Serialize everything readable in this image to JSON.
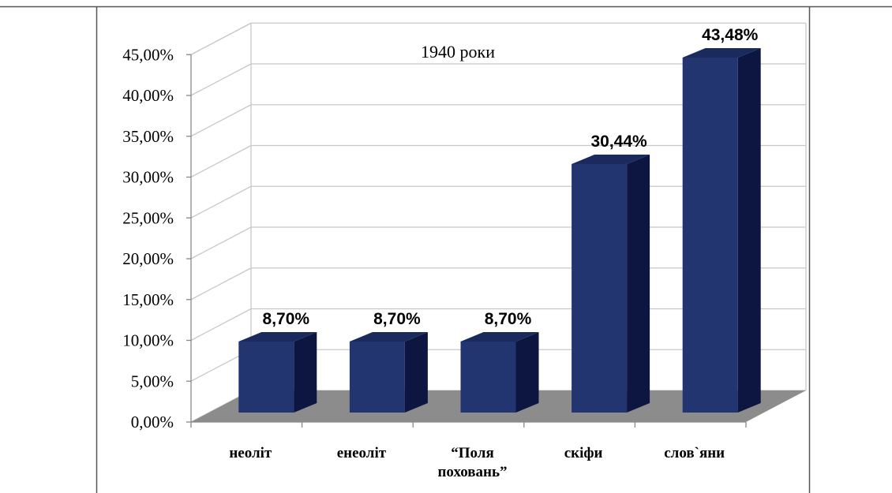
{
  "chart_data": {
    "type": "bar",
    "title": "1940 роки",
    "categories": [
      [
        "неоліт"
      ],
      [
        "енеоліт"
      ],
      [
        "“Поля",
        "поховань”"
      ],
      [
        "скіфи"
      ],
      [
        "слов`яни"
      ]
    ],
    "values": [
      8.7,
      8.7,
      8.7,
      30.44,
      43.48
    ],
    "data_labels": [
      "8,70%",
      "8,70%",
      "8,70%",
      "30,44%",
      "43,48%"
    ],
    "ylim": [
      0,
      45
    ],
    "yticks": [
      0,
      5,
      10,
      15,
      20,
      25,
      30,
      35,
      40,
      45
    ],
    "ytick_labels": [
      "0,00%",
      "5,00%",
      "10,00%",
      "15,00%",
      "20,00%",
      "25,00%",
      "30,00%",
      "35,00%",
      "40,00%",
      "45,00%"
    ],
    "grid": true,
    "style": "3d-column",
    "colors": {
      "bar_front": "#233570",
      "bar_top": "#1a2a5c",
      "bar_side": "#0d1640",
      "floor": "#8c8c8c",
      "grid": "#c8c8c8"
    }
  }
}
